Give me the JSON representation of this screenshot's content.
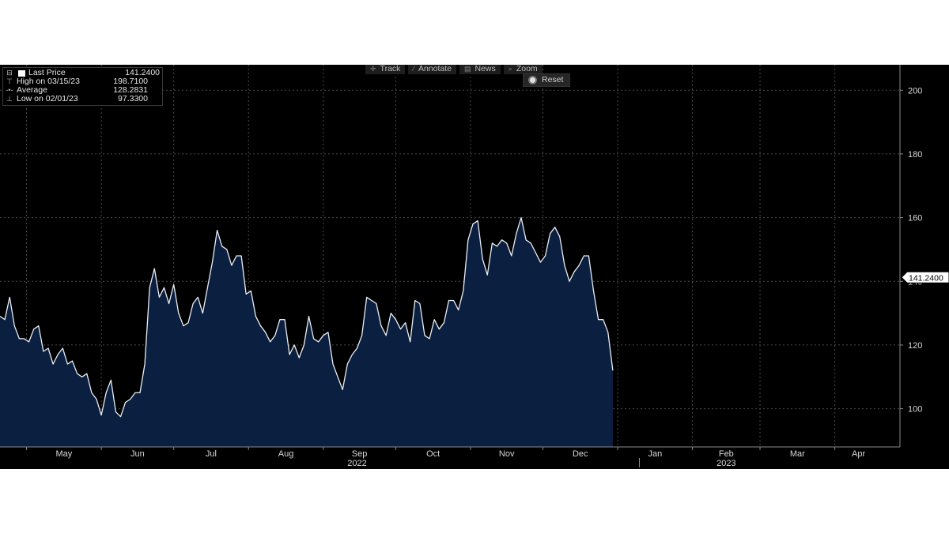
{
  "legend": {
    "items": [
      {
        "name": "Last Price",
        "value": "141.2400",
        "marker": "swatch"
      },
      {
        "name": "High on 03/15/23",
        "value": "198.7100",
        "marker": "high"
      },
      {
        "name": "Average",
        "value": "128.2831",
        "marker": "avg"
      },
      {
        "name": "Low on 02/01/23",
        "value": "97.3300",
        "marker": "low"
      }
    ]
  },
  "toolbar": {
    "track": "Track",
    "annotate": "Annotate",
    "news": "News",
    "zoom": "Zoom",
    "reset": "Reset"
  },
  "last_price_label": "141.2400",
  "colors": {
    "background": "#000000",
    "area_fill": "#0b2040",
    "line": "#e8eef6",
    "grid": "#4a4a4a",
    "axis_text": "#d8d8d8"
  },
  "chart_data": {
    "type": "area",
    "ylim": [
      88,
      208
    ],
    "yticks": [
      100,
      120,
      140,
      160,
      180,
      200
    ],
    "x_start": "2022-04-20",
    "x_end": "2023-04-28",
    "months": [
      {
        "label": "May",
        "date": "2022-05-01"
      },
      {
        "label": "Jun",
        "date": "2022-06-01"
      },
      {
        "label": "Jul",
        "date": "2022-07-01"
      },
      {
        "label": "Aug",
        "date": "2022-08-01"
      },
      {
        "label": "Sep",
        "date": "2022-09-01"
      },
      {
        "label": "Oct",
        "date": "2022-10-01"
      },
      {
        "label": "Nov",
        "date": "2022-11-01"
      },
      {
        "label": "Dec",
        "date": "2022-12-01"
      },
      {
        "label": "Jan",
        "date": "2023-01-01"
      },
      {
        "label": "Feb",
        "date": "2023-02-01"
      },
      {
        "label": "Mar",
        "date": "2023-03-01"
      },
      {
        "label": "Apr",
        "date": "2023-04-01"
      }
    ],
    "years": [
      {
        "label": "2022",
        "date": "2022-09-15"
      },
      {
        "label": "2023",
        "date": "2023-02-15"
      }
    ],
    "year_divider": "2023-01-10",
    "last_price": 141.24,
    "series": [
      {
        "points": [
          [
            "2022-04-20",
            129
          ],
          [
            "2022-04-22",
            128
          ],
          [
            "2022-04-24",
            135
          ],
          [
            "2022-04-26",
            126
          ],
          [
            "2022-04-28",
            122
          ],
          [
            "2022-04-30",
            122
          ],
          [
            "2022-05-02",
            121
          ],
          [
            "2022-05-04",
            125
          ],
          [
            "2022-05-06",
            126
          ],
          [
            "2022-05-08",
            118
          ],
          [
            "2022-05-10",
            119
          ],
          [
            "2022-05-12",
            114
          ],
          [
            "2022-05-14",
            117
          ],
          [
            "2022-05-16",
            119
          ],
          [
            "2022-05-18",
            114
          ],
          [
            "2022-05-20",
            115
          ],
          [
            "2022-05-22",
            111
          ],
          [
            "2022-05-24",
            110
          ],
          [
            "2022-05-26",
            111
          ],
          [
            "2022-05-28",
            105
          ],
          [
            "2022-05-30",
            103
          ],
          [
            "2022-06-01",
            98
          ],
          [
            "2022-06-03",
            105
          ],
          [
            "2022-06-05",
            109
          ],
          [
            "2022-06-07",
            99
          ],
          [
            "2022-06-09",
            97.5
          ],
          [
            "2022-06-11",
            102
          ],
          [
            "2022-06-13",
            103
          ],
          [
            "2022-06-15",
            105
          ],
          [
            "2022-06-17",
            105
          ],
          [
            "2022-06-19",
            114
          ],
          [
            "2022-06-21",
            138
          ],
          [
            "2022-06-23",
            144
          ],
          [
            "2022-06-25",
            135
          ],
          [
            "2022-06-27",
            138
          ],
          [
            "2022-06-29",
            133
          ],
          [
            "2022-07-01",
            139
          ],
          [
            "2022-07-03",
            130
          ],
          [
            "2022-07-05",
            126
          ],
          [
            "2022-07-07",
            127
          ],
          [
            "2022-07-09",
            133
          ],
          [
            "2022-07-11",
            135
          ],
          [
            "2022-07-13",
            130
          ],
          [
            "2022-07-15",
            138
          ],
          [
            "2022-07-17",
            146
          ],
          [
            "2022-07-19",
            156
          ],
          [
            "2022-07-21",
            151
          ],
          [
            "2022-07-23",
            150
          ],
          [
            "2022-07-25",
            145
          ],
          [
            "2022-07-27",
            148
          ],
          [
            "2022-07-29",
            148
          ],
          [
            "2022-07-31",
            136
          ],
          [
            "2022-08-02",
            137
          ],
          [
            "2022-08-04",
            129
          ],
          [
            "2022-08-06",
            126
          ],
          [
            "2022-08-08",
            124
          ],
          [
            "2022-08-10",
            121
          ],
          [
            "2022-08-12",
            123
          ],
          [
            "2022-08-14",
            128
          ],
          [
            "2022-08-16",
            128
          ],
          [
            "2022-08-18",
            117
          ],
          [
            "2022-08-20",
            120
          ],
          [
            "2022-08-22",
            116
          ],
          [
            "2022-08-24",
            120
          ],
          [
            "2022-08-26",
            129
          ],
          [
            "2022-08-28",
            122
          ],
          [
            "2022-08-30",
            121
          ],
          [
            "2022-09-01",
            123
          ],
          [
            "2022-09-03",
            124
          ],
          [
            "2022-09-05",
            114
          ],
          [
            "2022-09-07",
            110
          ],
          [
            "2022-09-09",
            106
          ],
          [
            "2022-09-11",
            114
          ],
          [
            "2022-09-13",
            117
          ],
          [
            "2022-09-15",
            119
          ],
          [
            "2022-09-17",
            123
          ],
          [
            "2022-09-19",
            135
          ],
          [
            "2022-09-21",
            134
          ],
          [
            "2022-09-23",
            133
          ],
          [
            "2022-09-25",
            126
          ],
          [
            "2022-09-27",
            123
          ],
          [
            "2022-09-29",
            130
          ],
          [
            "2022-10-01",
            128
          ],
          [
            "2022-10-03",
            125
          ],
          [
            "2022-10-05",
            127
          ],
          [
            "2022-10-07",
            121
          ],
          [
            "2022-10-09",
            134
          ],
          [
            "2022-10-11",
            133
          ],
          [
            "2022-10-13",
            123
          ],
          [
            "2022-10-15",
            122
          ],
          [
            "2022-10-17",
            128
          ],
          [
            "2022-10-19",
            125
          ],
          [
            "2022-10-21",
            127
          ],
          [
            "2022-10-23",
            134
          ],
          [
            "2022-10-25",
            134
          ],
          [
            "2022-10-27",
            131
          ],
          [
            "2022-10-29",
            137
          ],
          [
            "2022-10-31",
            153
          ],
          [
            "2022-11-02",
            158
          ],
          [
            "2022-11-04",
            159
          ],
          [
            "2022-11-06",
            147
          ],
          [
            "2022-11-08",
            142
          ],
          [
            "2022-11-10",
            152
          ],
          [
            "2022-11-12",
            151
          ],
          [
            "2022-11-14",
            153
          ],
          [
            "2022-11-16",
            152
          ],
          [
            "2022-11-18",
            148
          ],
          [
            "2022-11-20",
            155
          ],
          [
            "2022-11-22",
            160
          ],
          [
            "2022-11-24",
            153
          ],
          [
            "2022-11-26",
            152
          ],
          [
            "2022-11-28",
            149
          ],
          [
            "2022-11-30",
            146
          ],
          [
            "2022-12-02",
            148
          ],
          [
            "2022-12-04",
            155
          ],
          [
            "2022-12-06",
            157
          ],
          [
            "2022-12-08",
            154
          ],
          [
            "2022-12-10",
            145
          ],
          [
            "2022-12-12",
            140
          ],
          [
            "2022-12-14",
            143
          ],
          [
            "2022-12-16",
            145
          ],
          [
            "2022-12-18",
            148
          ],
          [
            "2022-12-20",
            148
          ],
          [
            "2022-12-22",
            137
          ],
          [
            "2022-12-24",
            128
          ],
          [
            "2022-12-26",
            128
          ],
          [
            "2022-12-28",
            124
          ],
          [
            "2022-12-30",
            112
          ]
        ],
        "points2": []
      }
    ]
  }
}
